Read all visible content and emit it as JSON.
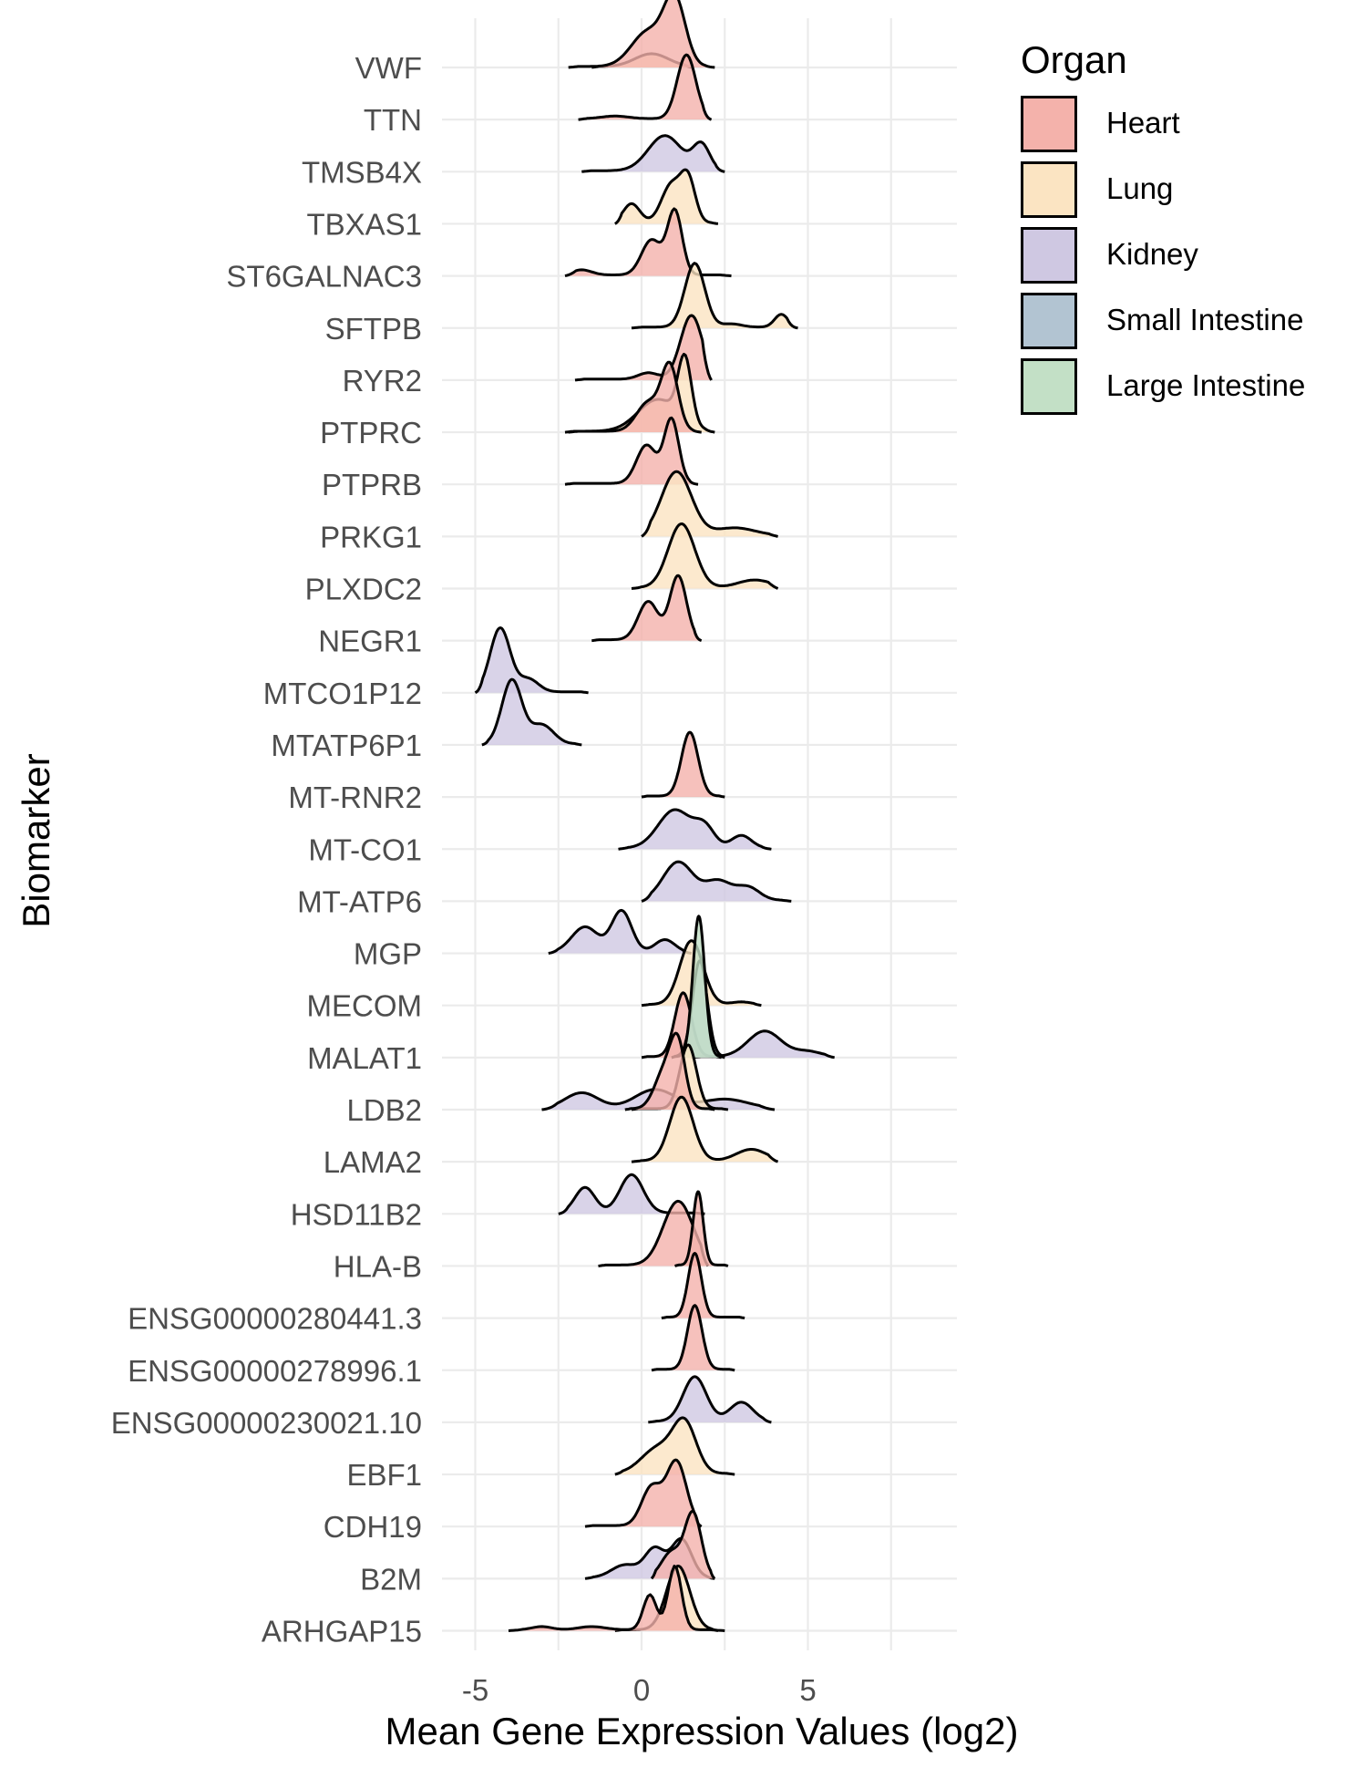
{
  "chart_data": {
    "type": "ridgeline",
    "title": "",
    "xlabel": "Mean Gene Expression Values (log2)",
    "ylabel": "Biomarker",
    "xlim": [
      -6,
      9.4
    ],
    "x_ticks": [
      -5,
      0,
      5
    ],
    "x_tick_labels": [
      "-5",
      "0",
      "5"
    ],
    "x_gridlines": [
      -7.5,
      -5,
      -2.5,
      0,
      2.5,
      5,
      7.5
    ],
    "grid": true,
    "legend_title": "Organ",
    "legend_position": "right",
    "categories": [
      "ARHGAP15",
      "B2M",
      "CDH19",
      "EBF1",
      "ENSG00000230021.10",
      "ENSG00000278996.1",
      "ENSG00000280441.3",
      "HLA-B",
      "HSD11B2",
      "LAMA2",
      "LDB2",
      "MALAT1",
      "MECOM",
      "MGP",
      "MT-ATP6",
      "MT-CO1",
      "MT-RNR2",
      "MTATP6P1",
      "MTCO1P12",
      "NEGR1",
      "PLXDC2",
      "PRKG1",
      "PTPRB",
      "PTPRC",
      "RYR2",
      "SFTPB",
      "ST6GALNAC3",
      "TBXAS1",
      "TMSB4X",
      "TTN",
      "VWF"
    ],
    "series": [
      {
        "name": "Heart",
        "color": "#F4B2AB"
      },
      {
        "name": "Lung",
        "color": "#FBE4C2"
      },
      {
        "name": "Kidney",
        "color": "#CFC8E2"
      },
      {
        "name": "Small Intestine",
        "color": "#B2C4D2"
      },
      {
        "name": "Large Intestine",
        "color": "#C3E0C6"
      }
    ],
    "densities": [
      {
        "gene": "VWF",
        "organ": "Heart",
        "range": [
          -2.2,
          2.2
        ],
        "peaks": [
          [
            0.2,
            0.5,
            0.55
          ],
          [
            1.0,
            0.32,
            1.0
          ]
        ]
      },
      {
        "gene": "VWF",
        "organ": "Lung",
        "range": [
          -1.5,
          1.5
        ],
        "peaks": [
          [
            0.3,
            0.5,
            0.2
          ]
        ]
      },
      {
        "gene": "TTN",
        "organ": "Heart",
        "range": [
          -1.9,
          2.1
        ],
        "peaks": [
          [
            1.35,
            0.28,
            1.0
          ],
          [
            -0.8,
            0.4,
            0.04
          ]
        ]
      },
      {
        "gene": "TMSB4X",
        "organ": "Kidney",
        "range": [
          -1.8,
          2.5
        ],
        "peaks": [
          [
            0.7,
            0.5,
            0.55
          ],
          [
            1.8,
            0.25,
            0.4
          ]
        ]
      },
      {
        "gene": "TBXAS1",
        "organ": "Lung",
        "range": [
          -0.8,
          2.3
        ],
        "peaks": [
          [
            -0.3,
            0.25,
            0.3
          ],
          [
            0.9,
            0.3,
            0.6
          ],
          [
            1.4,
            0.22,
            0.65
          ]
        ]
      },
      {
        "gene": "ST6GALNAC3",
        "organ": "Heart",
        "range": [
          -2.3,
          2.7
        ],
        "peaks": [
          [
            0.3,
            0.3,
            0.55
          ],
          [
            1.0,
            0.22,
            1.0
          ],
          [
            -1.8,
            0.3,
            0.08
          ]
        ]
      },
      {
        "gene": "SFTPB",
        "organ": "Lung",
        "range": [
          -0.3,
          4.7
        ],
        "peaks": [
          [
            1.6,
            0.3,
            1.0
          ],
          [
            4.2,
            0.2,
            0.2
          ],
          [
            2.7,
            0.3,
            0.05
          ]
        ]
      },
      {
        "gene": "RYR2",
        "organ": "Heart",
        "range": [
          -2.0,
          2.1
        ],
        "peaks": [
          [
            1.5,
            0.33,
            1.0
          ],
          [
            0.2,
            0.3,
            0.1
          ]
        ]
      },
      {
        "gene": "PTPRC",
        "organ": "Heart",
        "range": [
          -2.3,
          1.8
        ],
        "peaks": [
          [
            0.85,
            0.25,
            1.0
          ],
          [
            0.2,
            0.35,
            0.45
          ]
        ]
      },
      {
        "gene": "PTPRC",
        "organ": "Lung",
        "range": [
          -2.2,
          2.2
        ],
        "peaks": [
          [
            1.3,
            0.2,
            1.0
          ],
          [
            0.5,
            0.6,
            0.5
          ]
        ]
      },
      {
        "gene": "PTPRB",
        "organ": "Heart",
        "range": [
          -2.3,
          1.7
        ],
        "peaks": [
          [
            0.9,
            0.22,
            1.0
          ],
          [
            0.15,
            0.3,
            0.6
          ]
        ]
      },
      {
        "gene": "PRKG1",
        "organ": "Lung",
        "range": [
          0.0,
          4.1
        ],
        "peaks": [
          [
            1.05,
            0.45,
            1.0
          ],
          [
            2.8,
            0.6,
            0.12
          ]
        ]
      },
      {
        "gene": "PLXDC2",
        "organ": "Lung",
        "range": [
          -0.3,
          4.1
        ],
        "peaks": [
          [
            1.2,
            0.4,
            1.0
          ],
          [
            3.4,
            0.5,
            0.12
          ]
        ]
      },
      {
        "gene": "NEGR1",
        "organ": "Heart",
        "range": [
          -1.5,
          1.8
        ],
        "peaks": [
          [
            0.2,
            0.3,
            0.6
          ],
          [
            1.1,
            0.25,
            1.0
          ]
        ]
      },
      {
        "gene": "MTCO1P12",
        "organ": "Kidney",
        "range": [
          -5.0,
          -1.6
        ],
        "peaks": [
          [
            -4.25,
            0.3,
            1.0
          ],
          [
            -3.4,
            0.3,
            0.2
          ]
        ]
      },
      {
        "gene": "MTATP6P1",
        "organ": "Kidney",
        "range": [
          -4.8,
          -1.8
        ],
        "peaks": [
          [
            -3.9,
            0.3,
            1.0
          ],
          [
            -3.0,
            0.35,
            0.3
          ]
        ]
      },
      {
        "gene": "MT-RNR2",
        "organ": "Heart",
        "range": [
          0.0,
          2.5
        ],
        "peaks": [
          [
            1.45,
            0.25,
            1.0
          ]
        ]
      },
      {
        "gene": "MT-CO1",
        "organ": "Kidney",
        "range": [
          -0.7,
          3.9
        ],
        "peaks": [
          [
            1.0,
            0.5,
            0.6
          ],
          [
            1.9,
            0.3,
            0.3
          ],
          [
            3.0,
            0.3,
            0.2
          ]
        ]
      },
      {
        "gene": "MT-ATP6",
        "organ": "Kidney",
        "range": [
          0.0,
          4.5
        ],
        "peaks": [
          [
            1.1,
            0.45,
            0.6
          ],
          [
            2.3,
            0.4,
            0.3
          ],
          [
            3.2,
            0.35,
            0.2
          ]
        ]
      },
      {
        "gene": "MGP",
        "organ": "Kidney",
        "range": [
          -2.8,
          1.5
        ],
        "peaks": [
          [
            -0.6,
            0.3,
            0.65
          ],
          [
            -1.7,
            0.4,
            0.4
          ],
          [
            0.7,
            0.3,
            0.2
          ]
        ]
      },
      {
        "gene": "MECOM",
        "organ": "Lung",
        "range": [
          0.0,
          3.6
        ],
        "peaks": [
          [
            1.5,
            0.35,
            1.0
          ],
          [
            3.0,
            0.3,
            0.04
          ]
        ]
      },
      {
        "gene": "MALAT1",
        "organ": "Heart",
        "range": [
          0.0,
          2.4
        ],
        "peaks": [
          [
            1.25,
            0.25,
            1.0
          ]
        ]
      },
      {
        "gene": "MALAT1",
        "organ": "Kidney",
        "range": [
          1.5,
          5.8
        ],
        "peaks": [
          [
            3.7,
            0.5,
            0.4
          ],
          [
            5.0,
            0.4,
            0.08
          ]
        ]
      },
      {
        "gene": "MALAT1",
        "organ": "Small Intestine",
        "range": [
          0.9,
          2.5
        ],
        "peaks": [
          [
            1.75,
            0.22,
            1.5
          ]
        ]
      },
      {
        "gene": "MALAT1",
        "organ": "Large Intestine",
        "range": [
          0.9,
          2.5
        ],
        "peaks": [
          [
            1.72,
            0.18,
            2.2
          ]
        ]
      },
      {
        "gene": "LDB2",
        "organ": "Kidney",
        "range": [
          -3.0,
          4.0
        ],
        "peaks": [
          [
            -1.8,
            0.5,
            0.25
          ],
          [
            0.4,
            0.6,
            0.3
          ],
          [
            2.5,
            0.7,
            0.15
          ]
        ]
      },
      {
        "gene": "LDB2",
        "organ": "Heart",
        "range": [
          -0.5,
          2.2
        ],
        "peaks": [
          [
            0.7,
            0.3,
            0.6
          ],
          [
            1.1,
            0.22,
            0.9
          ]
        ]
      },
      {
        "gene": "LDB2",
        "organ": "Lung",
        "range": [
          -0.3,
          2.6
        ],
        "peaks": [
          [
            1.4,
            0.25,
            1.0
          ]
        ]
      },
      {
        "gene": "LAMA2",
        "organ": "Lung",
        "range": [
          -0.3,
          4.1
        ],
        "peaks": [
          [
            1.2,
            0.35,
            1.0
          ],
          [
            3.3,
            0.45,
            0.18
          ]
        ]
      },
      {
        "gene": "HSD11B2",
        "organ": "Kidney",
        "range": [
          -2.5,
          1.9
        ],
        "peaks": [
          [
            -0.3,
            0.35,
            0.6
          ],
          [
            -1.7,
            0.3,
            0.4
          ]
        ]
      },
      {
        "gene": "HLA-B",
        "organ": "Heart",
        "range": [
          -1.3,
          2.0
        ],
        "peaks": [
          [
            1.1,
            0.45,
            1.0
          ]
        ]
      },
      {
        "gene": "HLA-B",
        "organ": "Heart",
        "range": [
          1.0,
          2.6
        ],
        "peaks": [
          [
            1.7,
            0.15,
            1.15
          ]
        ]
      },
      {
        "gene": "ENSG00000280441.3",
        "organ": "Heart",
        "range": [
          0.6,
          3.1
        ],
        "peaks": [
          [
            1.6,
            0.2,
            1.0
          ]
        ]
      },
      {
        "gene": "ENSG00000278996.1",
        "organ": "Heart",
        "range": [
          0.3,
          2.8
        ],
        "peaks": [
          [
            1.6,
            0.22,
            1.0
          ]
        ]
      },
      {
        "gene": "ENSG00000230021.10",
        "organ": "Kidney",
        "range": [
          0.2,
          3.9
        ],
        "peaks": [
          [
            1.6,
            0.35,
            0.7
          ],
          [
            3.0,
            0.35,
            0.3
          ]
        ]
      },
      {
        "gene": "EBF1",
        "organ": "Lung",
        "range": [
          -0.8,
          2.8
        ],
        "peaks": [
          [
            1.3,
            0.35,
            0.75
          ],
          [
            0.5,
            0.5,
            0.4
          ]
        ]
      },
      {
        "gene": "CDH19",
        "organ": "Heart",
        "range": [
          -1.7,
          1.8
        ],
        "peaks": [
          [
            1.05,
            0.3,
            1.0
          ],
          [
            0.3,
            0.3,
            0.6
          ]
        ]
      },
      {
        "gene": "B2M",
        "organ": "Kidney",
        "range": [
          -1.7,
          2.2
        ],
        "peaks": [
          [
            0.4,
            0.3,
            0.45
          ],
          [
            1.2,
            0.3,
            0.6
          ],
          [
            -0.5,
            0.4,
            0.2
          ]
        ]
      },
      {
        "gene": "B2M",
        "organ": "Heart",
        "range": [
          0.3,
          2.2
        ],
        "peaks": [
          [
            1.55,
            0.25,
            1.0
          ],
          [
            0.9,
            0.3,
            0.4
          ]
        ]
      },
      {
        "gene": "ARHGAP15",
        "organ": "Heart",
        "range": [
          -4.0,
          2.5
        ],
        "peaks": [
          [
            1.0,
            0.2,
            1.0
          ],
          [
            0.25,
            0.2,
            0.55
          ],
          [
            -3.0,
            0.3,
            0.05
          ],
          [
            -1.5,
            0.4,
            0.05
          ]
        ]
      },
      {
        "gene": "ARHGAP15",
        "organ": "Lung",
        "range": [
          -0.8,
          2.3
        ],
        "peaks": [
          [
            1.1,
            0.35,
            1.0
          ]
        ]
      }
    ]
  }
}
